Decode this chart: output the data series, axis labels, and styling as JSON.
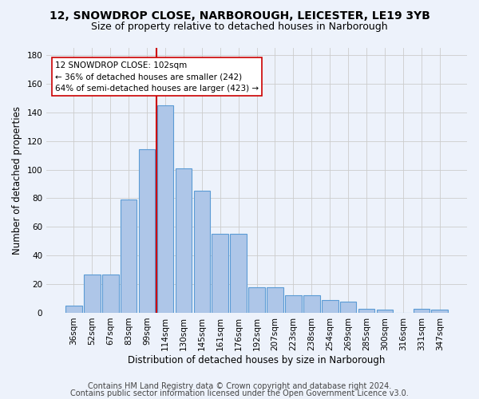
{
  "title_line1": "12, SNOWDROP CLOSE, NARBOROUGH, LEICESTER, LE19 3YB",
  "title_line2": "Size of property relative to detached houses in Narborough",
  "xlabel": "Distribution of detached houses by size in Narborough",
  "ylabel": "Number of detached properties",
  "categories": [
    "36sqm",
    "52sqm",
    "67sqm",
    "83sqm",
    "99sqm",
    "114sqm",
    "130sqm",
    "145sqm",
    "161sqm",
    "176sqm",
    "192sqm",
    "207sqm",
    "223sqm",
    "238sqm",
    "254sqm",
    "269sqm",
    "285sqm",
    "300sqm",
    "316sqm",
    "331sqm",
    "347sqm"
  ],
  "values": [
    5,
    27,
    27,
    79,
    114,
    145,
    101,
    85,
    55,
    55,
    18,
    18,
    12,
    12,
    9,
    8,
    3,
    2,
    0,
    3,
    2
  ],
  "bar_color": "#aec6e8",
  "bar_edge_color": "#5b9bd5",
  "vline_x_index": 4,
  "vline_color": "#cc0000",
  "annotation_text": "12 SNOWDROP CLOSE: 102sqm\n← 36% of detached houses are smaller (242)\n64% of semi-detached houses are larger (423) →",
  "annotation_box_color": "#ffffff",
  "annotation_box_edge_color": "#cc0000",
  "ylim": [
    0,
    185
  ],
  "yticks": [
    0,
    20,
    40,
    60,
    80,
    100,
    120,
    140,
    160,
    180
  ],
  "grid_color": "#cccccc",
  "background_color": "#edf2fb",
  "footer_line1": "Contains HM Land Registry data © Crown copyright and database right 2024.",
  "footer_line2": "Contains public sector information licensed under the Open Government Licence v3.0.",
  "title_fontsize": 10,
  "subtitle_fontsize": 9,
  "tick_fontsize": 7.5,
  "label_fontsize": 8.5,
  "footer_fontsize": 7,
  "annotation_fontsize": 7.5
}
